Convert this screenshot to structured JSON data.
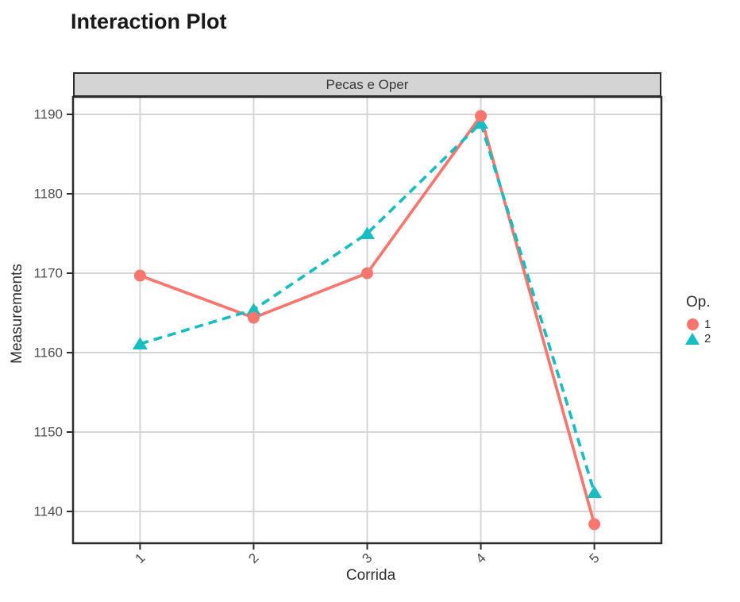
{
  "title": "Interaction Plot",
  "facet_label": "Pecas e Oper",
  "legend": {
    "title": "Op.",
    "items": [
      {
        "label": "1",
        "marker": "circle",
        "color": "#F8766D"
      },
      {
        "label": "2",
        "marker": "triangle",
        "color": "#18BDC1"
      }
    ]
  },
  "chart_data": {
    "type": "line",
    "title": "Interaction Plot",
    "facet": "Pecas e Oper",
    "xlabel": "Corrida",
    "ylabel": "Measurements",
    "x": [
      1,
      2,
      3,
      4,
      5
    ],
    "xticks": [
      "1",
      "2",
      "3",
      "4",
      "5"
    ],
    "yticks": [
      1140,
      1150,
      1160,
      1170,
      1180,
      1190
    ],
    "xlim": [
      0.41,
      5.59
    ],
    "ylim": [
      1136.0,
      1192.2
    ],
    "grid": true,
    "legend_title": "Op.",
    "legend_position": "right",
    "series": [
      {
        "name": "1",
        "color": "#F8766D",
        "line_style": "solid",
        "marker": "circle",
        "values": [
          1169.7,
          1164.4,
          1170.0,
          1189.8,
          1138.4
        ]
      },
      {
        "name": "2",
        "color": "#18BDC1",
        "line_style": "dashed",
        "marker": "triangle",
        "values": [
          1161.1,
          1165.4,
          1175.0,
          1188.9,
          1142.4
        ]
      }
    ]
  },
  "colors": {
    "op1": "#F8766D",
    "op2": "#18BDC1",
    "grid": "#D5D5D5",
    "panel_border": "#2B2B2B",
    "strip_fill": "#D4D4D4",
    "strip_text": "#383838",
    "tick_text": "#4D4D4D"
  }
}
